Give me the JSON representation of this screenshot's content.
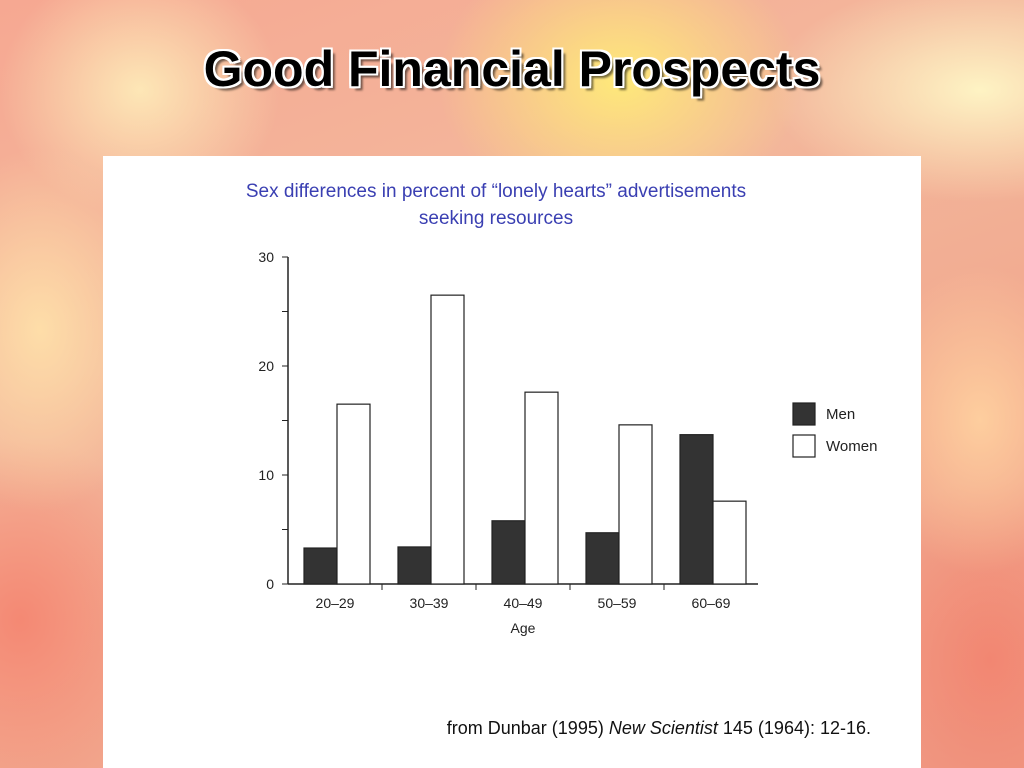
{
  "slide": {
    "title": "Good Financial Prospects"
  },
  "chart_data": {
    "type": "bar",
    "title": "Sex differences in percent of “lonely hearts” advertisements seeking resources",
    "title_lines": [
      "Sex differences in percent of “lonely hearts” advertisements",
      "seeking resources"
    ],
    "xlabel": "Age",
    "ylabel": "",
    "categories": [
      "20–29",
      "30–39",
      "40–49",
      "50–59",
      "60–69"
    ],
    "series": [
      {
        "name": "Men",
        "color": "#333333",
        "values": [
          3.3,
          3.4,
          5.8,
          4.7,
          13.7
        ]
      },
      {
        "name": "Women",
        "color": "#ffffff",
        "values": [
          16.5,
          26.5,
          17.6,
          14.6,
          7.6
        ]
      }
    ],
    "ylim": [
      0,
      30
    ],
    "yticks": [
      0,
      10,
      20,
      30
    ],
    "grid": false,
    "legend_position": "right"
  },
  "citation": {
    "prefix": "from Dunbar (1995) ",
    "journal": "New Scientist",
    "suffix": " 145 (1964): 12-16."
  }
}
